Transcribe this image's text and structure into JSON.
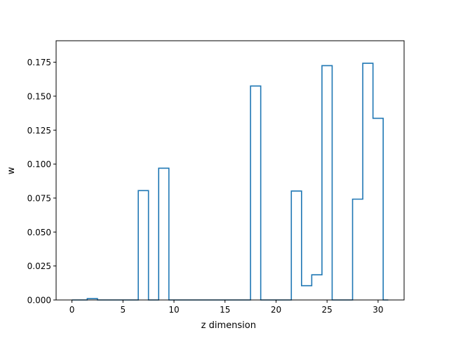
{
  "chart_data": {
    "type": "step",
    "title": "",
    "xlabel": "z dimension",
    "ylabel": "w",
    "xlim": [
      -1.55,
      32.55
    ],
    "ylim": [
      0.0,
      0.1908
    ],
    "xticks": [
      0,
      5,
      10,
      15,
      20,
      25,
      30
    ],
    "xtick_labels": [
      "0",
      "5",
      "10",
      "15",
      "20",
      "25",
      "30"
    ],
    "yticks": [
      0.0,
      0.025,
      0.05,
      0.075,
      0.1,
      0.125,
      0.15,
      0.175
    ],
    "ytick_labels": [
      "0.000",
      "0.025",
      "0.050",
      "0.075",
      "0.100",
      "0.125",
      "0.150",
      "0.175"
    ],
    "grid": false,
    "step_where": "mid",
    "color": "#1f77b4",
    "x": [
      0,
      1,
      2,
      3,
      4,
      5,
      6,
      7,
      8,
      9,
      10,
      11,
      12,
      13,
      14,
      15,
      16,
      17,
      18,
      19,
      20,
      21,
      22,
      23,
      24,
      25,
      26,
      27,
      28,
      29,
      30,
      31
    ],
    "y": [
      0,
      0,
      0.001,
      0,
      0,
      0,
      0,
      0.0805,
      0,
      0.097,
      0,
      0,
      0,
      0,
      0,
      0,
      0,
      0,
      0.1575,
      0,
      0,
      0,
      0.0802,
      0.0105,
      0.0185,
      0.1725,
      0,
      0,
      0.0742,
      0.1742,
      0.1337,
      0
    ]
  }
}
